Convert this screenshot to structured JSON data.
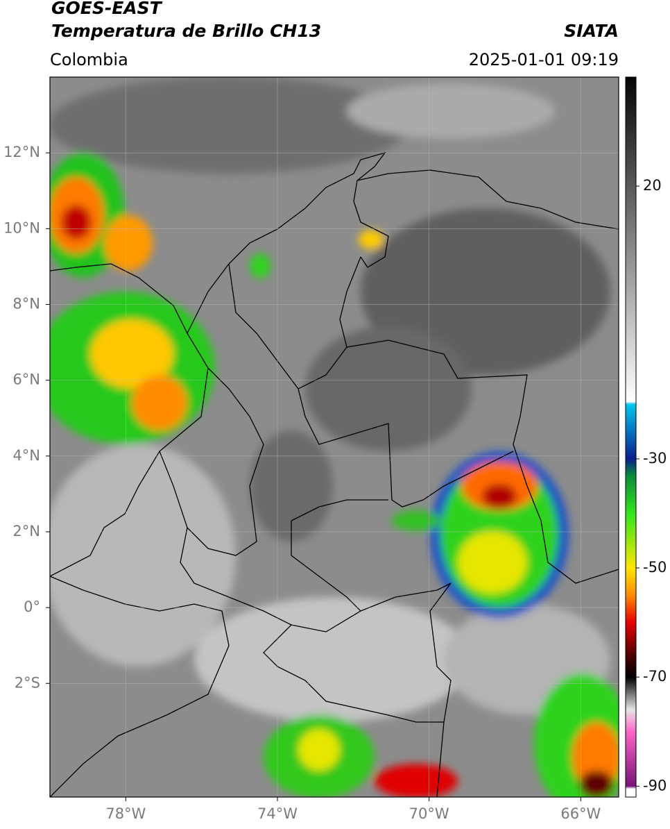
{
  "header": {
    "title": "GOES-EAST",
    "subtitle": "Temperatura de Brillo CH13",
    "source": "SIATA",
    "region": "Colombia",
    "timestamp": "2025-01-01 09:19"
  },
  "map": {
    "lonlim": [
      -80,
      -65
    ],
    "latlim": [
      -5,
      14
    ],
    "lonticks": [
      {
        "value": -78,
        "label": "78°W"
      },
      {
        "value": -74,
        "label": "74°W"
      },
      {
        "value": -70,
        "label": "70°W"
      },
      {
        "value": -66,
        "label": "66°W"
      }
    ],
    "latticks": [
      {
        "value": 12,
        "label": "12°N"
      },
      {
        "value": 10,
        "label": "10°N"
      },
      {
        "value": 8,
        "label": "8°N"
      },
      {
        "value": 6,
        "label": "6°N"
      },
      {
        "value": 4,
        "label": "4°N"
      },
      {
        "value": 2,
        "label": "2°N"
      },
      {
        "value": 0,
        "label": "0°"
      },
      {
        "value": -2,
        "label": "2°S"
      }
    ],
    "grid": true
  },
  "colorbar": {
    "range": [
      -92,
      40
    ],
    "ticks": [
      20,
      -30,
      -50,
      -70,
      -90
    ],
    "colormap": [
      {
        "value": 40,
        "color": "#050505"
      },
      {
        "value": -19.5,
        "color": "#ffffff"
      },
      {
        "value": -20,
        "color": "#00c8f0"
      },
      {
        "value": -30,
        "color": "#0a1e8c"
      },
      {
        "value": -33,
        "color": "#0a8a3a"
      },
      {
        "value": -40,
        "color": "#32e61e"
      },
      {
        "value": -50,
        "color": "#ffe600"
      },
      {
        "value": -55,
        "color": "#ff8c00"
      },
      {
        "value": -60,
        "color": "#e60000"
      },
      {
        "value": -66,
        "color": "#500000"
      },
      {
        "value": -70,
        "color": "#000000"
      },
      {
        "value": -76,
        "color": "#e6e6e6"
      },
      {
        "value": -80,
        "color": "#ff64c8"
      },
      {
        "value": -90,
        "color": "#781478"
      },
      {
        "value": -90.5,
        "color": "#ffffff"
      },
      {
        "value": -92,
        "color": "#ffffff"
      }
    ]
  }
}
